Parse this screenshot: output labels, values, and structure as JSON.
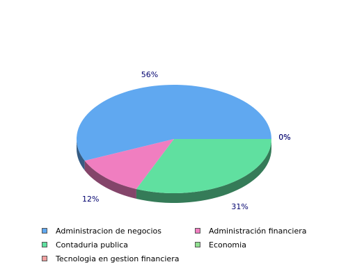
{
  "chart_data": {
    "type": "pie",
    "style": "3d",
    "categories": [
      "Administracion de negocios",
      "Administración financiera",
      "Contaduria publica",
      "Economia",
      "Tecnologia en gestion financiera"
    ],
    "values": [
      56,
      12,
      31,
      0,
      0
    ],
    "data_labels": [
      "56%",
      "12%",
      "31%",
      "0%",
      "0%"
    ],
    "colors": [
      "#60a8f0",
      "#f07ec0",
      "#60e0a0",
      "#90e090",
      "#f0a0a0"
    ],
    "legend_position": "bottom"
  }
}
